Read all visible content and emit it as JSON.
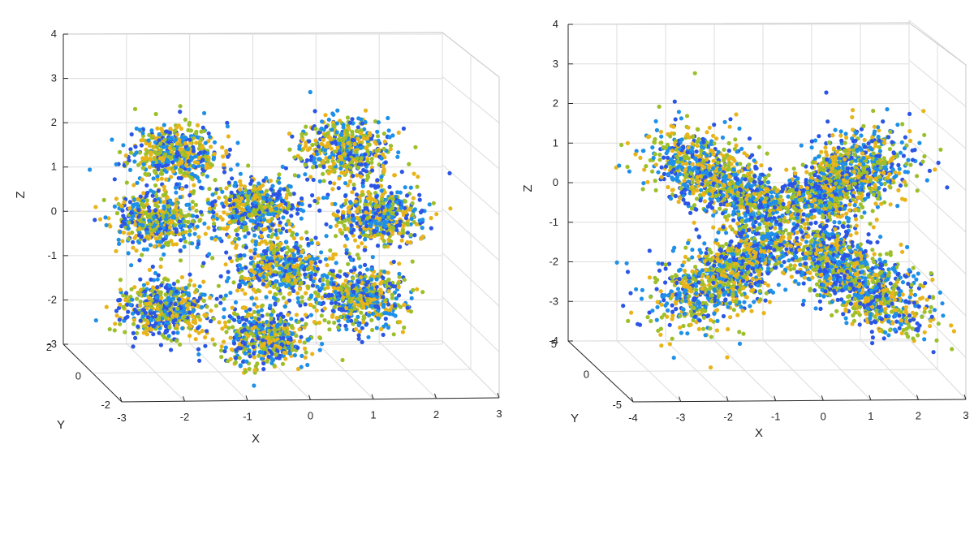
{
  "chart_data": [
    {
      "type": "scatter",
      "dimensions": 3,
      "panel": "left",
      "title": "",
      "xlabel": "X",
      "ylabel": "Y",
      "zlabel": "Z",
      "xlim": [
        -3,
        3
      ],
      "ylim": [
        -2,
        2
      ],
      "zlim": [
        -3,
        4
      ],
      "x_ticks": [
        "-3",
        "-2",
        "-1",
        "0",
        "1",
        "2",
        "3"
      ],
      "y_ticks": [
        "-2",
        "0",
        "2"
      ],
      "z_ticks": [
        "-3",
        "-2",
        "-1",
        "0",
        "1",
        "2",
        "3",
        "4"
      ],
      "grid": true,
      "marker": "filled dots",
      "colors": [
        "#2a55e5",
        "#1e90e8",
        "#e8b41a",
        "#9cbf2a"
      ],
      "clusters": [
        {
          "x": -2.0,
          "y": 0,
          "z": 2.1
        },
        {
          "x": 1.2,
          "y": 0,
          "z": 2.2
        },
        {
          "x": -2.3,
          "y": 0,
          "z": 0.4
        },
        {
          "x": 1.8,
          "y": 0,
          "z": 0.5
        },
        {
          "x": -0.5,
          "y": 0,
          "z": 0.7
        },
        {
          "x": 0.0,
          "y": 0,
          "z": -0.8
        },
        {
          "x": -2.2,
          "y": 0,
          "z": -1.8
        },
        {
          "x": 1.5,
          "y": 0,
          "z": -1.5
        },
        {
          "x": -0.3,
          "y": 0,
          "z": -2.5
        }
      ]
    },
    {
      "type": "scatter",
      "dimensions": 3,
      "panel": "right",
      "title": "",
      "xlabel": "X",
      "ylabel": "Y",
      "zlabel": "Z",
      "xlim": [
        -4,
        3
      ],
      "ylim": [
        -5,
        5
      ],
      "zlim": [
        -4,
        4
      ],
      "x_ticks": [
        "-4",
        "-3",
        "-2",
        "-1",
        "0",
        "1",
        "2",
        "3"
      ],
      "y_ticks": [
        "-5",
        "0",
        "5"
      ],
      "z_ticks": [
        "-4",
        "-3",
        "-2",
        "-1",
        "0",
        "1",
        "2",
        "3",
        "4"
      ],
      "grid": true,
      "marker": "filled dots",
      "colors": [
        "#2a55e5",
        "#1e90e8",
        "#e8b41a",
        "#9cbf2a"
      ],
      "shape": "X-shaped arrangement of four elongated lobes",
      "lobes": [
        {
          "from": [
            -0.5,
            0,
            -0.1
          ],
          "to": [
            -2.8,
            0,
            1.7
          ]
        },
        {
          "from": [
            0.2,
            0,
            0.1
          ],
          "to": [
            1.8,
            0,
            1.7
          ]
        },
        {
          "from": [
            -0.6,
            0,
            -0.9
          ],
          "to": [
            -2.6,
            0,
            -2.8
          ]
        },
        {
          "from": [
            0.2,
            0,
            -0.8
          ],
          "to": [
            2.3,
            0,
            -3.0
          ]
        }
      ]
    }
  ]
}
